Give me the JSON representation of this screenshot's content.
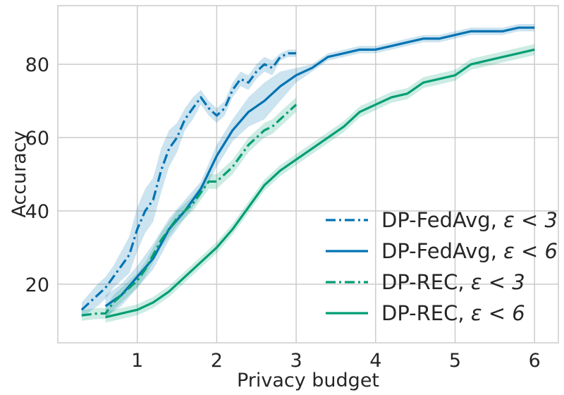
{
  "chart_data": {
    "type": "line",
    "title": "",
    "xlabel": "Privacy budget",
    "ylabel": "Accuracy",
    "xlim": [
      0,
      6.3
    ],
    "ylim": [
      4,
      96
    ],
    "xticks": [
      1,
      2,
      3,
      4,
      5,
      6
    ],
    "yticks": [
      20,
      40,
      60,
      80
    ],
    "grid": true,
    "legend_position": "bottom-right",
    "colors": {
      "fedavg": "#0173b2",
      "rec": "#029e73"
    },
    "series": [
      {
        "name": "DP-FedAvg, ε < 3",
        "legend_text": "DP-FedAvg, ",
        "legend_eps": "ε < 3",
        "linestyle": "dashdot",
        "color": "#0173b2",
        "x": [
          0.3,
          0.5,
          0.6,
          0.7,
          0.8,
          0.9,
          1.0,
          1.1,
          1.2,
          1.3,
          1.4,
          1.5,
          1.6,
          1.7,
          1.8,
          1.9,
          2.0,
          2.1,
          2.2,
          2.3,
          2.4,
          2.5,
          2.6,
          2.7,
          2.8,
          2.9,
          3.0
        ],
        "y": [
          13,
          17,
          19,
          22,
          25,
          28,
          35,
          40,
          43,
          51,
          57,
          60,
          65,
          68,
          71,
          68,
          66,
          68,
          73,
          76,
          75,
          78,
          80,
          79,
          82,
          83,
          83
        ],
        "lower": [
          11,
          14,
          16,
          19,
          21,
          23,
          29,
          34,
          37,
          45,
          52,
          56,
          62,
          65,
          69,
          66,
          64,
          66,
          71,
          74,
          73,
          76,
          78,
          77,
          81,
          82,
          82
        ],
        "upper": [
          15,
          20,
          22,
          25,
          29,
          33,
          41,
          46,
          49,
          57,
          62,
          64,
          68,
          71,
          73,
          70,
          68,
          70,
          75,
          78,
          77,
          80,
          82,
          81,
          83,
          84,
          84
        ]
      },
      {
        "name": "DP-FedAvg, ε < 6",
        "legend_text": "DP-FedAvg, ",
        "legend_eps": "ε < 6",
        "linestyle": "solid",
        "color": "#0173b2",
        "x": [
          0.6,
          0.8,
          1.0,
          1.2,
          1.4,
          1.6,
          1.8,
          2.0,
          2.2,
          2.4,
          2.6,
          2.8,
          3.0,
          3.2,
          3.4,
          3.6,
          3.8,
          4.0,
          4.2,
          4.4,
          4.6,
          4.8,
          5.0,
          5.2,
          5.4,
          5.6,
          5.8,
          6.0
        ],
        "y": [
          14,
          17,
          22,
          27,
          35,
          40,
          46,
          55,
          62,
          67,
          70,
          74,
          77,
          79,
          82,
          83,
          84,
          84,
          85,
          86,
          87,
          87,
          88,
          89,
          89,
          89,
          90,
          90
        ],
        "lower": [
          11,
          14,
          19,
          24,
          32,
          38,
          44,
          52,
          59,
          63,
          65,
          70,
          75,
          78,
          81,
          82,
          83,
          83,
          84,
          85,
          86,
          86,
          87,
          88,
          88,
          88,
          89,
          89
        ],
        "upper": [
          17,
          20,
          25,
          31,
          38,
          43,
          48,
          58,
          65,
          71,
          75,
          78,
          79,
          80,
          83,
          84,
          85,
          85,
          86,
          87,
          88,
          88,
          89,
          90,
          90,
          90,
          91,
          91
        ]
      },
      {
        "name": "DP-REC, ε < 3",
        "legend_text": "DP-REC, ",
        "legend_eps": "ε < 3",
        "linestyle": "dashdot",
        "color": "#029e73",
        "x": [
          0.3,
          0.5,
          0.6,
          0.7,
          0.8,
          0.9,
          1.0,
          1.1,
          1.2,
          1.3,
          1.4,
          1.5,
          1.6,
          1.7,
          1.8,
          1.9,
          2.0,
          2.1,
          2.2,
          2.3,
          2.4,
          2.5,
          2.6,
          2.7,
          2.8,
          2.9,
          3.0
        ],
        "y": [
          11.5,
          12,
          12,
          15,
          17,
          19,
          21,
          24,
          28,
          32,
          35,
          38,
          40,
          42,
          45,
          48,
          48,
          50,
          52,
          55,
          58,
          60,
          62,
          63,
          65,
          67,
          69
        ],
        "lower": [
          10,
          10.5,
          10.5,
          13,
          15,
          17,
          19,
          22,
          26,
          30,
          33,
          36,
          38,
          40,
          43,
          46,
          46,
          48,
          50,
          53,
          56,
          58,
          60,
          61,
          63,
          65,
          67
        ],
        "upper": [
          13,
          13.5,
          13.5,
          17,
          19,
          21,
          23,
          26,
          30,
          34,
          37,
          40,
          42,
          44,
          47,
          50,
          50,
          52,
          54,
          57,
          60,
          62,
          64,
          65,
          67,
          69,
          71
        ]
      },
      {
        "name": "DP-REC, ε < 6",
        "legend_text": "DP-REC, ",
        "legend_eps": "ε < 6",
        "linestyle": "solid",
        "color": "#029e73",
        "x": [
          0.6,
          0.8,
          1.0,
          1.2,
          1.4,
          1.6,
          1.8,
          2.0,
          2.2,
          2.4,
          2.6,
          2.8,
          3.0,
          3.2,
          3.4,
          3.6,
          3.8,
          4.0,
          4.2,
          4.4,
          4.6,
          4.8,
          5.0,
          5.2,
          5.4,
          5.6,
          5.8,
          6.0
        ],
        "y": [
          11,
          12,
          13,
          15,
          18,
          22,
          26,
          30,
          35,
          41,
          47,
          51,
          54,
          57,
          60,
          63,
          67,
          69,
          71,
          72,
          75,
          76,
          77,
          80,
          81,
          82,
          83,
          84
        ],
        "lower": [
          9.5,
          10.5,
          11.5,
          13.5,
          16.5,
          20.5,
          24.5,
          28.5,
          33.5,
          39.5,
          45.5,
          49.5,
          52.5,
          55.5,
          58.5,
          61.5,
          65.5,
          67.5,
          69.5,
          70.5,
          73.5,
          74.5,
          75.5,
          78.5,
          79.5,
          80.5,
          81.5,
          82.5
        ],
        "upper": [
          12.5,
          13.5,
          14.5,
          16.5,
          19.5,
          23.5,
          27.5,
          31.5,
          36.5,
          42.5,
          48.5,
          52.5,
          55.5,
          58.5,
          61.5,
          64.5,
          68.5,
          70.5,
          72.5,
          73.5,
          76.5,
          77.5,
          78.5,
          81.5,
          82.5,
          83.5,
          84.5,
          85.5
        ]
      }
    ]
  }
}
